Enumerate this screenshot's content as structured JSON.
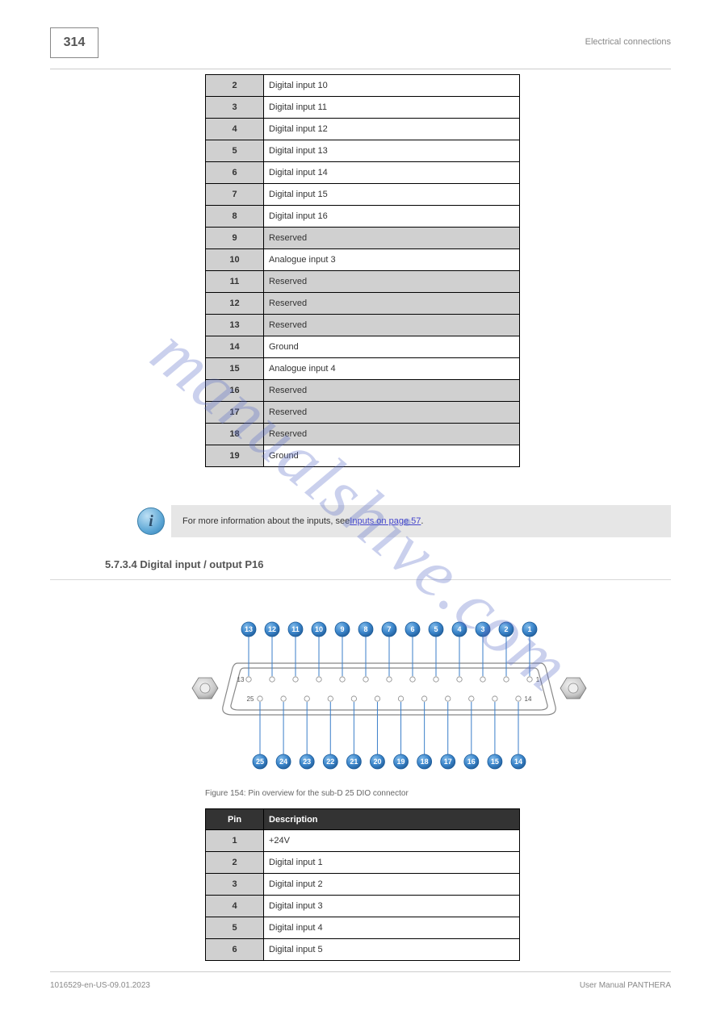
{
  "page_number": "314",
  "header_right": "Electrical connections",
  "table1": {
    "col_widths": {
      "key": 72,
      "val": 318
    },
    "rows": [
      {
        "key": "2",
        "val": "Digital input 10",
        "grey": false
      },
      {
        "key": "3",
        "val": "Digital input 11",
        "grey": false
      },
      {
        "key": "4",
        "val": "Digital input 12",
        "grey": false
      },
      {
        "key": "5",
        "val": "Digital input 13",
        "grey": false
      },
      {
        "key": "6",
        "val": "Digital input 14",
        "grey": false
      },
      {
        "key": "7",
        "val": "Digital input 15",
        "grey": false
      },
      {
        "key": "8",
        "val": "Digital input 16",
        "grey": false
      },
      {
        "key": "9",
        "val": "Reserved",
        "grey": true
      },
      {
        "key": "10",
        "val": "Analogue input 3",
        "grey": false
      },
      {
        "key": "11",
        "val": "Reserved",
        "grey": true
      },
      {
        "key": "12",
        "val": "Reserved",
        "grey": true
      },
      {
        "key": "13",
        "val": "Reserved",
        "grey": true
      },
      {
        "key": "14",
        "val": "Ground",
        "grey": false
      },
      {
        "key": "15",
        "val": "Analogue input 4",
        "grey": false
      },
      {
        "key": "16",
        "val": "Reserved",
        "grey": true
      },
      {
        "key": "17",
        "val": "Reserved",
        "grey": true
      },
      {
        "key": "18",
        "val": "Reserved",
        "grey": true
      },
      {
        "key": "19",
        "val": "Ground",
        "grey": false
      }
    ]
  },
  "info_note": {
    "prefix": "For more information about the inputs, see ",
    "link_text": "Inputs on page 57",
    "suffix": "."
  },
  "subtitle": "5.7.3.4  Digital input / output P16",
  "connector": {
    "top_bubbles": [
      13,
      12,
      11,
      10,
      9,
      8,
      7,
      6,
      5,
      4,
      3,
      2,
      1
    ],
    "bottom_bubbles": [
      25,
      24,
      23,
      22,
      21,
      20,
      19,
      18,
      17,
      16,
      15,
      14
    ],
    "pin_label_left_top": "13",
    "pin_label_right_top": "1",
    "pin_label_left_bottom": "25",
    "pin_label_right_bottom": "14",
    "colors": {
      "bubble_fill_top": "#5aa3e0",
      "bubble_fill_bottom": "#2d6fb3",
      "bubble_stroke": "#1a5a99",
      "link_line": "#3a7ec9",
      "shell_stroke": "#888888"
    }
  },
  "figure_caption": "Figure 154: Pin overview for the sub-D 25 DIO connector",
  "table2": {
    "header": {
      "key": "Pin",
      "val": "Description"
    },
    "rows": [
      {
        "key": "1",
        "val": "+24V"
      },
      {
        "key": "2",
        "val": "Digital input 1"
      },
      {
        "key": "3",
        "val": "Digital input 2"
      },
      {
        "key": "4",
        "val": "Digital input 3"
      },
      {
        "key": "5",
        "val": "Digital input 4"
      },
      {
        "key": "6",
        "val": "Digital input 5"
      }
    ]
  },
  "footer_left": "1016529-en-US-09.01.2023",
  "footer_right": "User Manual PANTHERA",
  "watermark": "manualshive.com",
  "colors": {
    "grey_cell": "#d0d0d0",
    "dark_header": "#333333",
    "border": "#000000",
    "text": "#333333",
    "link": "#4444cc"
  }
}
